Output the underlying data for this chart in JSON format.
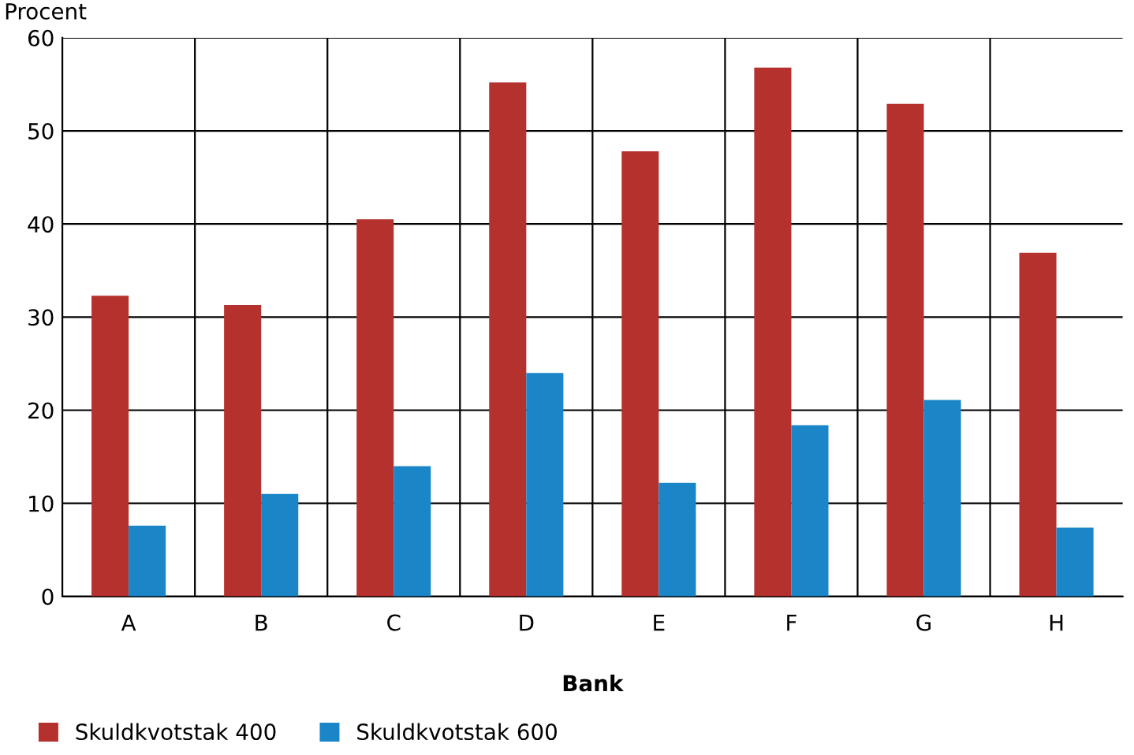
{
  "chart_data": {
    "type": "bar",
    "ylabel": "Procent",
    "xlabel": "Bank",
    "categories": [
      "A",
      "B",
      "C",
      "D",
      "E",
      "F",
      "G",
      "H"
    ],
    "series": [
      {
        "name": "Skuldkvotstak 400",
        "color": "#b5312e",
        "values": [
          32.3,
          31.3,
          40.5,
          55.2,
          47.8,
          56.8,
          52.9,
          36.9
        ]
      },
      {
        "name": "Skuldkvotstak 600",
        "color": "#1a86c8",
        "values": [
          7.6,
          11.0,
          14.0,
          24.0,
          12.2,
          18.4,
          21.1,
          7.4
        ]
      }
    ],
    "ylim": [
      0,
      60
    ],
    "yticks": [
      0,
      10,
      20,
      30,
      40,
      50,
      60
    ],
    "grid": true,
    "legend": "bottom"
  }
}
